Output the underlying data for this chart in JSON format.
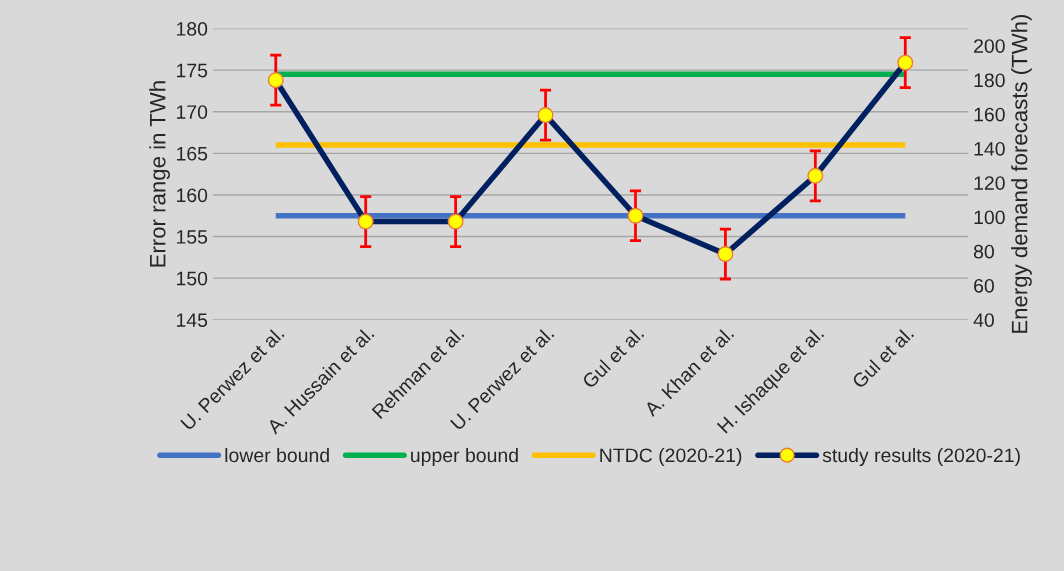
{
  "chart_data": {
    "type": "line",
    "categories": [
      "U. Perwez et al.",
      "A. Hussain et al.",
      "Rehman et al.",
      "U. Perwez et al.",
      "Gul et al.",
      "A. Khan et al.",
      "H. Ishaque et al.",
      "Gul et al."
    ],
    "series": [
      {
        "name": "lower bound",
        "color": "#4472c4",
        "marker": "none",
        "values": [
          157.5,
          157.5,
          157.5,
          157.5,
          157.5,
          157.5,
          157.5,
          157.5
        ]
      },
      {
        "name": "upper bound",
        "color": "#00b050",
        "marker": "none",
        "values": [
          174.5,
          174.5,
          174.5,
          174.5,
          174.5,
          174.5,
          174.5,
          174.5
        ]
      },
      {
        "name": "NTDC (2020-21)",
        "color": "#ffc000",
        "marker": "none",
        "values": [
          166.0,
          166.0,
          166.0,
          166.0,
          166.0,
          166.0,
          166.0,
          166.0
        ]
      },
      {
        "name": "study results (2020-21)",
        "color": "#002060",
        "marker": "circle",
        "values": [
          173.8,
          156.8,
          156.8,
          169.6,
          157.5,
          152.9,
          162.3,
          175.9
        ],
        "errors": [
          3,
          3,
          3,
          3,
          3,
          3,
          3,
          3
        ]
      }
    ],
    "ylabel": "Error range in TWh",
    "y2label": "Energy demand forecasts (TWh)",
    "ylim": [
      145,
      180
    ],
    "yticks": [
      145,
      150,
      155,
      160,
      165,
      170,
      175,
      180
    ],
    "y2lim": [
      40,
      210
    ],
    "y2ticks": [
      40,
      60,
      80,
      100,
      120,
      140,
      160,
      180,
      200
    ],
    "grid": "y",
    "legend": "bottom"
  }
}
